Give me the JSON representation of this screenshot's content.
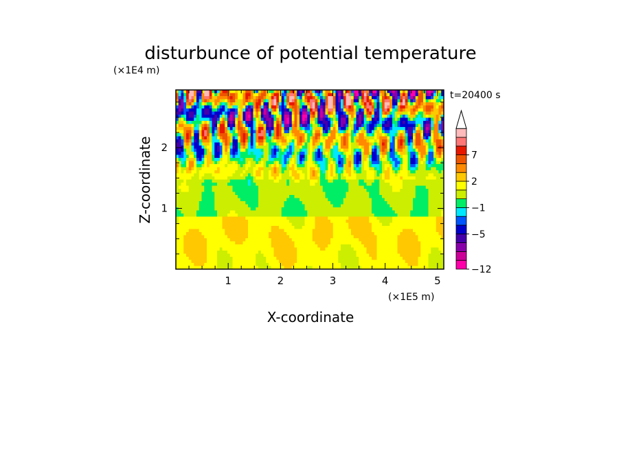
{
  "chart_data": {
    "type": "heatmap",
    "title": "disturbunce of potential temperature",
    "xlabel": "X-coordinate",
    "ylabel": "Z-coordinate",
    "x_unit": "(×1E5 m)",
    "y_unit": "(×1E4 m)",
    "time_label": "t=20400 s",
    "xlim": [
      0,
      5.12
    ],
    "ylim": [
      0,
      2.95
    ],
    "x_ticks": [
      {
        "value": 1,
        "label": "1"
      },
      {
        "value": 2,
        "label": "2"
      },
      {
        "value": 3,
        "label": "3"
      },
      {
        "value": 4,
        "label": "4"
      },
      {
        "value": 5,
        "label": "5"
      }
    ],
    "y_ticks": [
      {
        "value": 1,
        "label": "1"
      },
      {
        "value": 2,
        "label": "2"
      }
    ],
    "colorbar": {
      "levels": [
        -12,
        -11,
        -9,
        -7,
        -5,
        -3,
        -2,
        -1,
        0,
        1,
        2,
        3,
        5,
        7,
        9,
        11
      ],
      "labeled": [
        {
          "value": -12,
          "label": "−12"
        },
        {
          "value": -5,
          "label": "−5"
        },
        {
          "value": -1,
          "label": "−1"
        },
        {
          "value": 2,
          "label": "2"
        },
        {
          "value": 7,
          "label": "7"
        }
      ],
      "colors": [
        "#ff00aa",
        "#cc0099",
        "#8800aa",
        "#4400aa",
        "#0000cc",
        "#0055ff",
        "#00e8ff",
        "#00ee66",
        "#ccee00",
        "#ffff00",
        "#ffc800",
        "#ff8a00",
        "#ee5500",
        "#e81800",
        "#ff7777",
        "#ffbbbb"
      ],
      "extend": "max"
    },
    "field_description": "2D disturbance field over x (0–5.1) and z (0–2.9); near-zero (green/yellow) below ~1.5, alternating strong warm (red) and cold (blue/purple) anomalies in tilted wave bands above ~1.5."
  }
}
